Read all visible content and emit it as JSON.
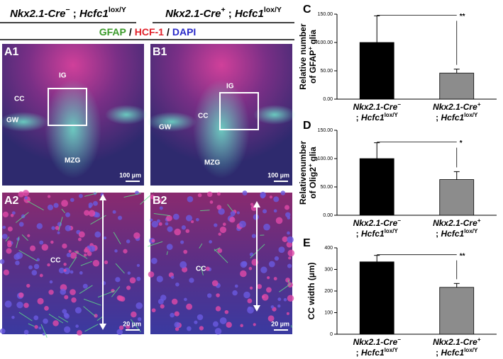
{
  "header": {
    "left": {
      "gene": "Nkx2.1-Cre",
      "sign": "−",
      "sep": " ; ",
      "allele": "Hcfc1",
      "sup": "lox/Y"
    },
    "right": {
      "gene": "Nkx2.1-Cre",
      "sign": "+",
      "sep": " ; ",
      "allele": "Hcfc1",
      "sup": "lox/Y"
    },
    "stains": [
      "GFAP",
      "HCF-1",
      "DAPI"
    ],
    "separator": "/"
  },
  "panels": [
    {
      "id": "A1",
      "labels": [
        "IG",
        "CC",
        "GW",
        "MZG"
      ],
      "scale": "100 µm"
    },
    {
      "id": "B1",
      "labels": [
        "IG",
        "CC",
        "GW",
        "MZG"
      ],
      "scale": "100 µm"
    },
    {
      "id": "A2",
      "labels": [
        "CC"
      ],
      "scale": "20 µm"
    },
    {
      "id": "B2",
      "labels": [
        "CC"
      ],
      "scale": "20 µm"
    }
  ],
  "chart_data": [
    {
      "type": "bar",
      "panel": "C",
      "ylabel": {
        "line1": "Relative number",
        "line2": "of GFAP",
        "sup": "+",
        "end": " glia"
      },
      "categories": [
        {
          "gene": "Nkx2.1-Cre",
          "sign": "−",
          "sep": "; ",
          "allele": "Hcfc1",
          "sup": "lox/Y"
        },
        {
          "gene": "Nkx2.1-Cre",
          "sign": "+",
          "sep": "; ",
          "allele": "Hcfc1",
          "sup": "lox/Y"
        }
      ],
      "values": [
        100,
        46
      ],
      "errors": [
        47,
        7
      ],
      "colors": [
        "#000000",
        "#8c8c8c"
      ],
      "ylim": [
        0,
        150
      ],
      "yticks": [
        {
          "value": 0,
          "label": "0.00"
        },
        {
          "value": 50,
          "label": "50.00"
        },
        {
          "value": 100,
          "label": "100.00"
        },
        {
          "value": 150,
          "label": "150.00"
        }
      ],
      "significance": "**"
    },
    {
      "type": "bar",
      "panel": "D",
      "ylabel": {
        "line1": "Relativenumber",
        "line2": "of Olig2",
        "sup": "+",
        "end": " glia"
      },
      "categories": [
        {
          "gene": "Nkx2.1-Cre",
          "sign": "−",
          "sep": "; ",
          "allele": "Hcfc1",
          "sup": "lox/Y"
        },
        {
          "gene": "Nkx2.1-Cre",
          "sign": "+",
          "sep": "; ",
          "allele": "Hcfc1",
          "sup": "lox/Y"
        }
      ],
      "values": [
        100,
        63
      ],
      "errors": [
        28,
        14
      ],
      "colors": [
        "#000000",
        "#8c8c8c"
      ],
      "ylim": [
        0,
        150
      ],
      "yticks": [
        {
          "value": 0,
          "label": "0.00"
        },
        {
          "value": 50,
          "label": "50.00"
        },
        {
          "value": 100,
          "label": "100.00"
        },
        {
          "value": 150,
          "label": "150.00"
        }
      ],
      "significance": "*"
    },
    {
      "type": "bar",
      "panel": "E",
      "ylabel": {
        "line1": "CC width (µm)"
      },
      "categories": [
        {
          "gene": "Nkx2.1-Cre",
          "sign": "−",
          "sep": "; ",
          "allele": "Hcfc1",
          "sup": "lox/Y"
        },
        {
          "gene": "Nkx2.1-Cre",
          "sign": "+",
          "sep": "; ",
          "allele": "Hcfc1",
          "sup": "lox/Y"
        }
      ],
      "values": [
        335,
        217
      ],
      "errors": [
        30,
        18
      ],
      "colors": [
        "#000000",
        "#8c8c8c"
      ],
      "ylim": [
        0,
        400
      ],
      "yticks": [
        0,
        100,
        200,
        300,
        400
      ],
      "significance": "**"
    }
  ]
}
